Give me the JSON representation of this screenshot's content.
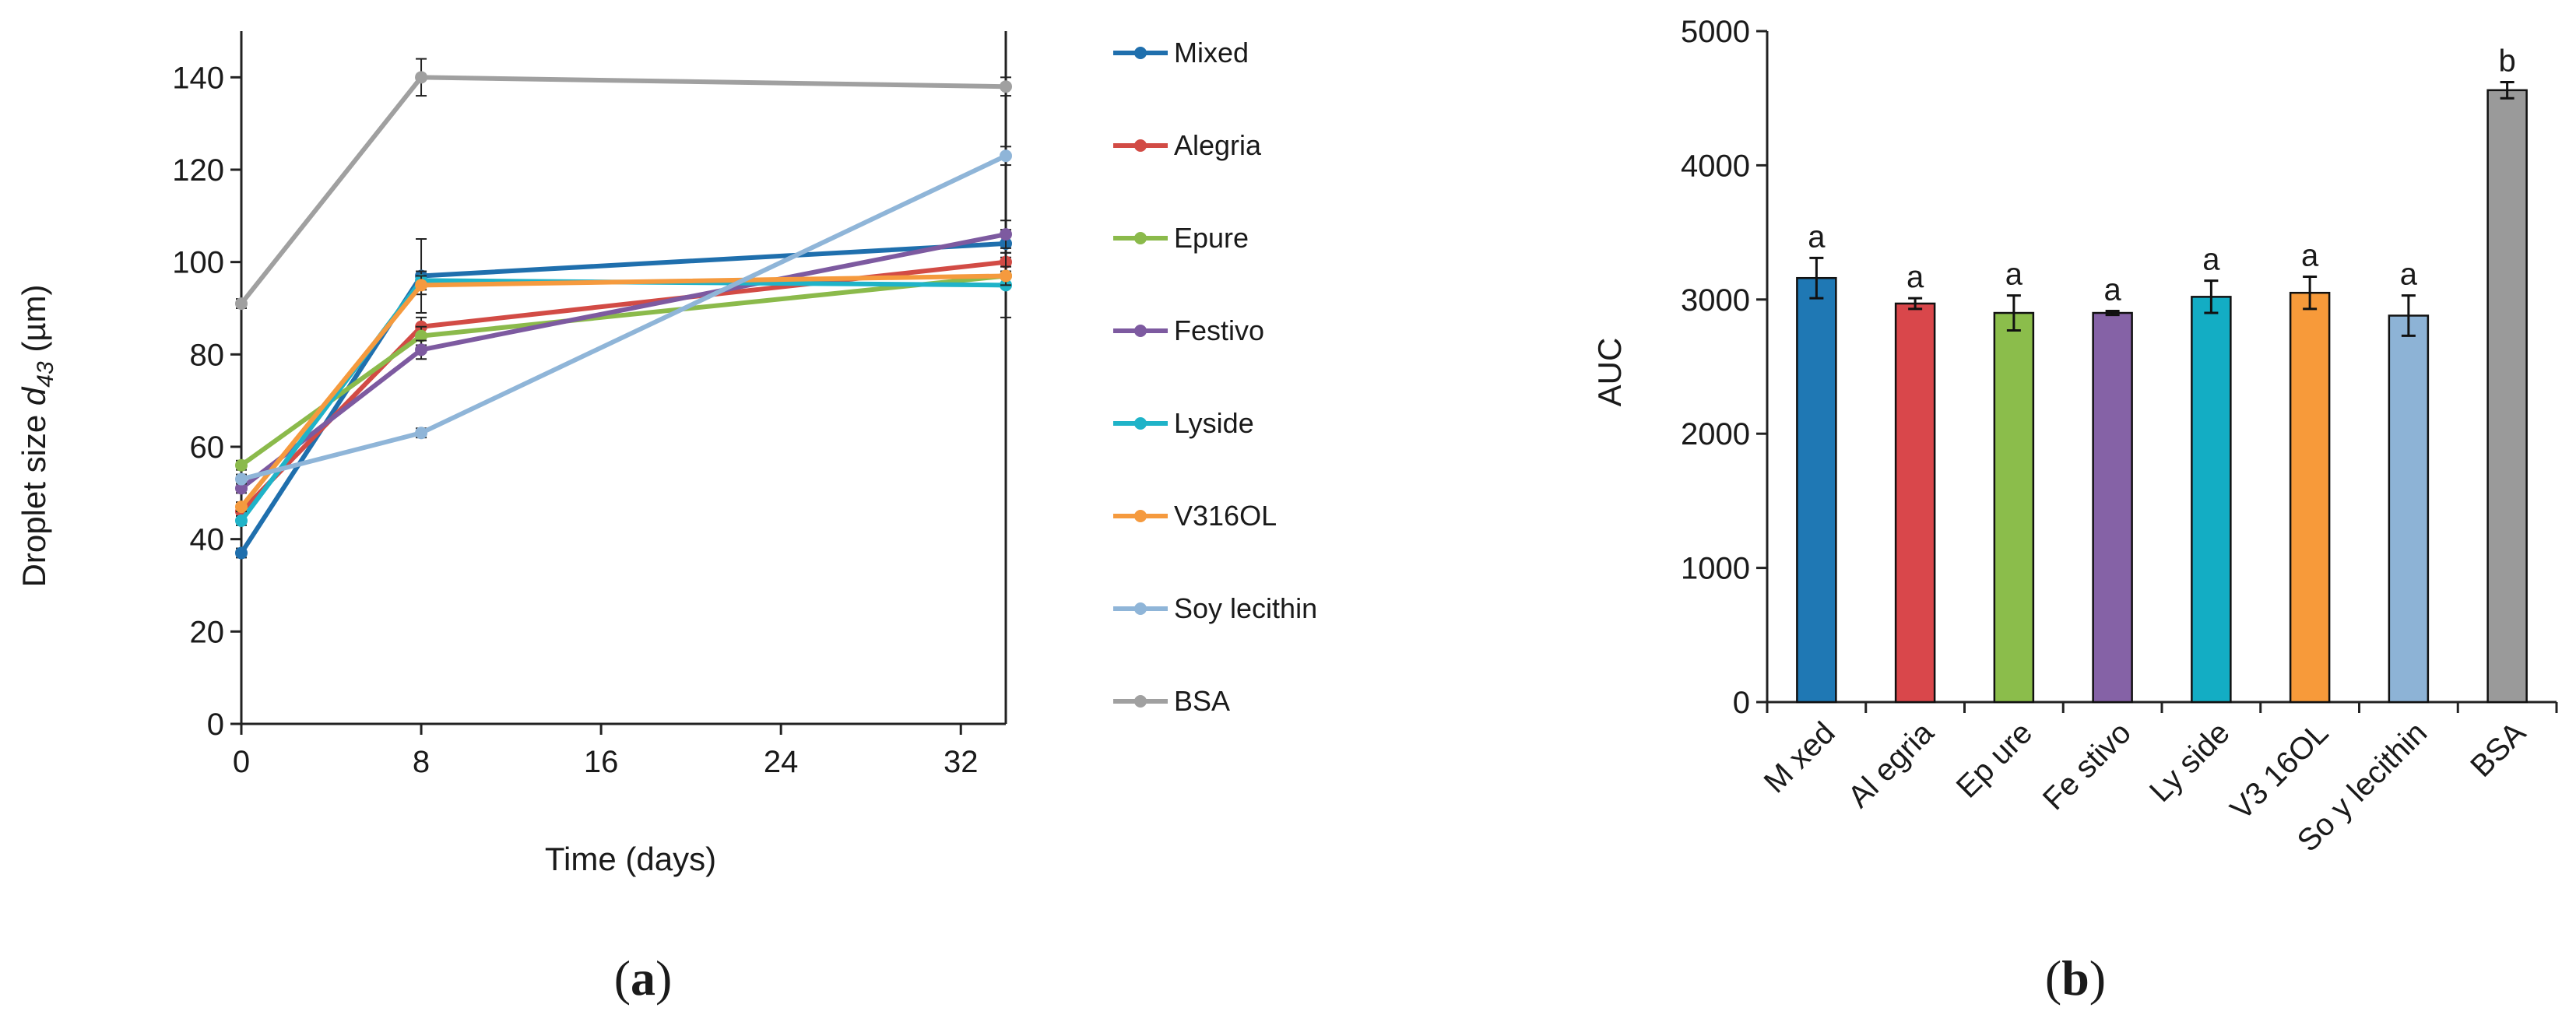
{
  "chart_data": [
    {
      "type": "line",
      "panel": "a",
      "xlabel": "Time (days)",
      "ylabel_prefix": "Droplet size ",
      "ylabel_symbol": "d",
      "ylabel_subscript": "43",
      "ylabel_suffix": " (µm)",
      "xlim": [
        0,
        34
      ],
      "ylim": [
        0,
        150
      ],
      "xticks": [
        0,
        8,
        16,
        24,
        32
      ],
      "yticks": [
        0,
        20,
        40,
        60,
        80,
        100,
        120,
        140
      ],
      "x": [
        0,
        8,
        34
      ],
      "legend_position": "right",
      "series": [
        {
          "name": "Mixed",
          "color": "#1f6fad",
          "values": [
            37,
            97,
            104
          ],
          "errors": [
            1,
            8,
            3
          ]
        },
        {
          "name": "Alegria",
          "color": "#d24b45",
          "values": [
            46,
            86,
            100
          ],
          "errors": [
            1,
            2,
            2
          ]
        },
        {
          "name": "Epure",
          "color": "#8bba4b",
          "values": [
            56,
            84,
            97
          ],
          "errors": [
            1,
            2,
            2
          ]
        },
        {
          "name": "Festivo",
          "color": "#7d5aa0",
          "values": [
            51,
            81,
            106
          ],
          "errors": [
            1,
            2,
            3
          ]
        },
        {
          "name": "Lyside",
          "color": "#1fb3c8",
          "values": [
            44,
            96,
            95
          ],
          "errors": [
            1,
            2,
            7
          ]
        },
        {
          "name": "V316OL",
          "color": "#f59a3e",
          "values": [
            47,
            95,
            97
          ],
          "errors": [
            1,
            2,
            2
          ]
        },
        {
          "name": "Soy lecithin",
          "color": "#8fb5d8",
          "values": [
            53,
            63,
            123
          ],
          "errors": [
            1,
            1,
            2
          ]
        },
        {
          "name": "BSA",
          "color": "#a0a0a0",
          "values": [
            91,
            140,
            138
          ],
          "errors": [
            1,
            4,
            2
          ]
        }
      ]
    },
    {
      "type": "bar",
      "panel": "b",
      "ylabel": "AUC",
      "ylim": [
        0,
        5000
      ],
      "yticks": [
        0,
        1000,
        2000,
        3000,
        4000,
        5000
      ],
      "categories": [
        "M xed",
        "Al egria",
        "Ep ure",
        "Fe stivo",
        "Ly side",
        "V3 16OL",
        "So y lecithin",
        "BSA"
      ],
      "values": [
        3160,
        2970,
        2900,
        2900,
        3020,
        3050,
        2880,
        4560
      ],
      "errors": [
        150,
        40,
        130,
        15,
        120,
        120,
        150,
        60
      ],
      "letters": [
        "a",
        "a",
        "a",
        "a",
        "a",
        "a",
        "a",
        "b"
      ],
      "colors": [
        "#1f78b4",
        "#d9474b",
        "#8bbd4b",
        "#8562a6",
        "#13adc4",
        "#f79a3a",
        "#8db3d6",
        "#9a9a9a"
      ]
    }
  ],
  "panel_labels": {
    "a": {
      "open": "(",
      "letter": "a",
      "close": ")"
    },
    "b": {
      "open": "(",
      "letter": "b",
      "close": ")"
    }
  }
}
